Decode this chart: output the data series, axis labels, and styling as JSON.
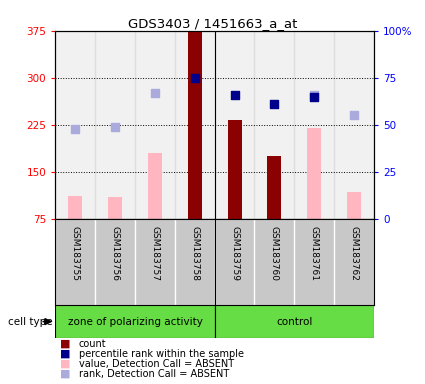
{
  "title": "GDS3403 / 1451663_a_at",
  "samples": [
    "GSM183755",
    "GSM183756",
    "GSM183757",
    "GSM183758",
    "GSM183759",
    "GSM183760",
    "GSM183761",
    "GSM183762"
  ],
  "group1_label": "zone of polarizing activity",
  "group2_label": "control",
  "cell_type_label": "cell type",
  "ylim_left": [
    75,
    375
  ],
  "ylim_right": [
    0,
    100
  ],
  "yticks_left": [
    75,
    150,
    225,
    300,
    375
  ],
  "yticks_right": [
    0,
    25,
    50,
    75,
    100
  ],
  "ytick_right_labels": [
    "0",
    "25",
    "50",
    "75",
    "100%"
  ],
  "dark_red": "#8B0000",
  "pink": "#FFB6C1",
  "dark_blue": "#00008B",
  "light_blue": "#AAAADD",
  "green": "#66DD44",
  "gray_bg": "#C8C8C8",
  "count_values": [
    0,
    0,
    0,
    375,
    232,
    175,
    0,
    0
  ],
  "value_absent": [
    112,
    110,
    180,
    0,
    0,
    0,
    220,
    118
  ],
  "percentile_rank": [
    null,
    null,
    null,
    75,
    66,
    61,
    65,
    null
  ],
  "rank_absent": [
    48,
    49,
    67,
    null,
    null,
    null,
    66,
    55
  ],
  "legend_items": [
    {
      "label": "count",
      "color": "#8B0000"
    },
    {
      "label": "percentile rank within the sample",
      "color": "#00008B"
    },
    {
      "label": "value, Detection Call = ABSENT",
      "color": "#FFB6C1"
    },
    {
      "label": "rank, Detection Call = ABSENT",
      "color": "#AAAADD"
    }
  ]
}
